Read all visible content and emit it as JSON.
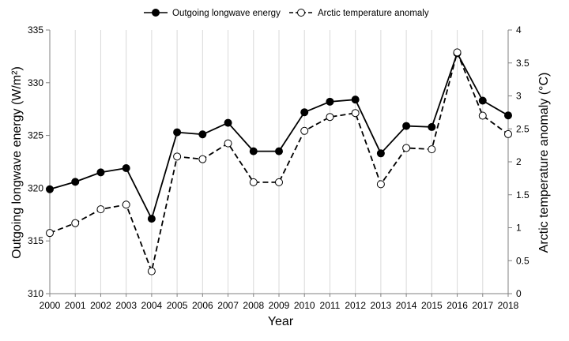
{
  "chart_data": {
    "type": "line",
    "title": "",
    "xlabel": "Year",
    "ylabel_left": "Outgoing longwave energy (W/m²)",
    "ylabel_right": "Arctic temperature anomaly (°C)",
    "x": [
      "2000",
      "2001",
      "2002",
      "2003",
      "2004",
      "2005",
      "2006",
      "2007",
      "2008",
      "2009",
      "2010",
      "2011",
      "2012",
      "2013",
      "2014",
      "2015",
      "2016",
      "2017",
      "2018"
    ],
    "ylim_left": [
      310,
      335
    ],
    "yticks_left": [
      310,
      315,
      320,
      325,
      330,
      335
    ],
    "ylim_right": [
      0,
      4
    ],
    "yticks_right": [
      0,
      0.5,
      1,
      1.5,
      2,
      2.5,
      3,
      3.5,
      4
    ],
    "grid": "vertical",
    "legend_position": "top-center",
    "series": [
      {
        "name": "Outgoing longwave energy",
        "axis": "left",
        "line_style": "solid",
        "marker": "filled-circle",
        "color": "#000000",
        "values": [
          319.9,
          320.6,
          321.5,
          321.9,
          317.1,
          325.3,
          325.1,
          326.2,
          323.5,
          323.5,
          327.2,
          328.2,
          328.4,
          323.3,
          325.9,
          325.8,
          332.8,
          328.3,
          326.9
        ]
      },
      {
        "name": "Arctic temperature anomaly",
        "axis": "right",
        "line_style": "dashed",
        "marker": "open-circle",
        "color": "#000000",
        "values": [
          0.92,
          1.07,
          1.28,
          1.35,
          0.34,
          2.08,
          2.04,
          2.28,
          1.69,
          1.69,
          2.47,
          2.68,
          2.74,
          1.66,
          2.21,
          2.19,
          3.66,
          2.7,
          2.42
        ]
      }
    ]
  }
}
